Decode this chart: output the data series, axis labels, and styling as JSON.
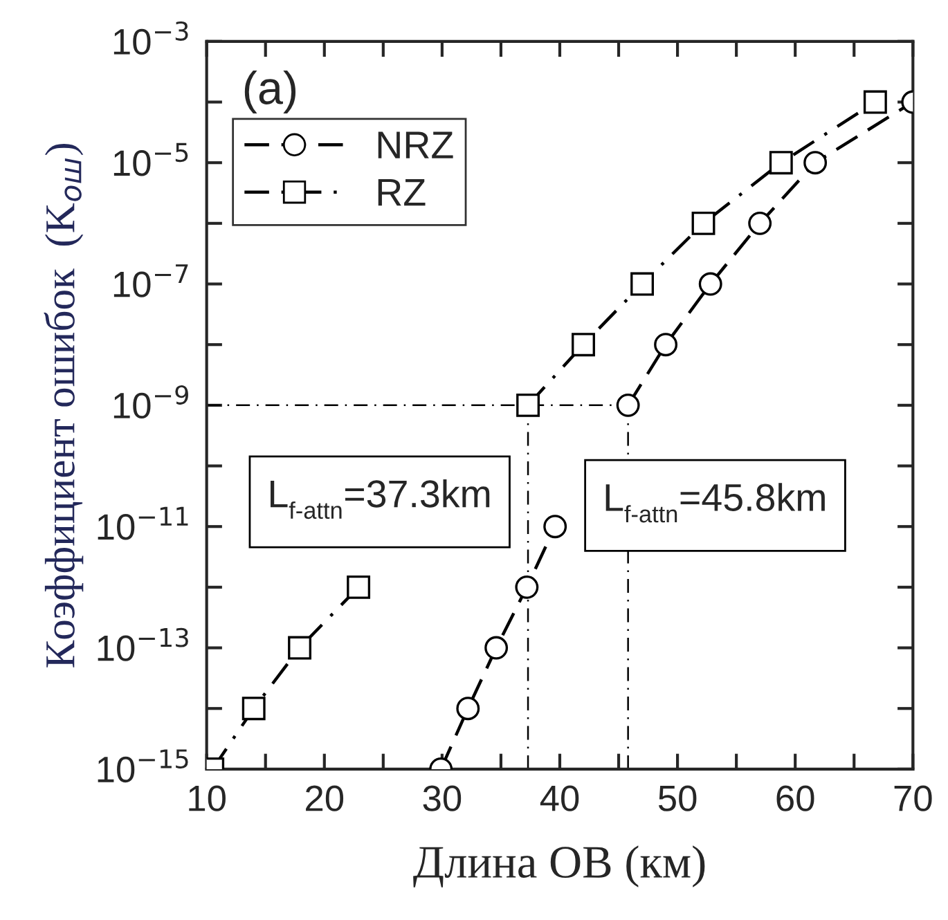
{
  "chart_data": {
    "type": "line",
    "xlabel": "Длина ОВ (км)",
    "ylabel": "Коэффициент ошибок  (K$_{ош}$)",
    "annotations": [
      "(a)"
    ],
    "log": "y",
    "grid": false,
    "legend": "top left",
    "xlim": [
      10,
      70
    ],
    "ylim": [
      1e-15,
      0.001
    ],
    "xticks": [
      10,
      {
        "value": 15,
        "label": null
      },
      20,
      {
        "value": 25,
        "label": null
      },
      30,
      {
        "value": 35,
        "label": null
      },
      40,
      {
        "value": 45,
        "label": null
      },
      50,
      {
        "value": 55,
        "label": null
      },
      60,
      {
        "value": 65,
        "label": null
      },
      70
    ],
    "yticks": [
      {
        "value": 1e-15,
        "label": "10$^{−15}$"
      },
      {
        "value": 1e-14,
        "label": null
      },
      {
        "value": 1e-13,
        "label": "10$^{−13}$"
      },
      {
        "value": 1e-12,
        "label": null
      },
      {
        "value": 1e-11,
        "label": "10$^{−11}$"
      },
      {
        "value": 1e-10,
        "label": null
      },
      {
        "value": 1e-09,
        "label": "10$^{−9}$"
      },
      {
        "value": 1e-08,
        "label": null
      },
      {
        "value": 1e-07,
        "label": "10$^{−7}$"
      },
      {
        "value": 1e-06,
        "label": null
      },
      {
        "value": 1e-05,
        "label": "10$^{−5}$"
      },
      {
        "value": 0.0001,
        "label": null
      },
      {
        "value": 0.001,
        "label": "10$^{−3}$"
      }
    ],
    "ref_lines": [
      {
        "axis": "x",
        "value": 37.3,
        "label": "L$_{f-attn}$=37.3km",
        "line_style": "dashdot",
        "color": "#000000"
      },
      {
        "axis": "x",
        "value": 45.8,
        "label": "L$_{f-attn}$=45.8km",
        "line_style": "dashdot",
        "color": "#000000"
      },
      {
        "axis": "y",
        "value": 1e-09,
        "line_style": "dashdot",
        "color": "#000000"
      }
    ],
    "series": [
      {
        "name": "NRZ",
        "color": "#000000",
        "marker": "circle",
        "line_style": "dashed",
        "x": [
          29.9,
          32.2,
          34.6,
          37.2,
          39.6,
          42.7,
          45.8,
          49,
          52.8,
          57,
          61.7,
          70
        ],
        "values": [
          1e-15,
          1e-14,
          1e-13,
          1e-12,
          1e-11,
          null,
          1e-09,
          1e-08,
          1e-07,
          1e-06,
          1e-05,
          0.0001
        ]
      },
      {
        "name": "RZ",
        "color": "#000000",
        "marker": "square",
        "line_style": "dashdot",
        "x": [
          10.5,
          14,
          17.9,
          22.9,
          27.9,
          32.6,
          37.3,
          42,
          47,
          52.2,
          58.8,
          66.8
        ],
        "values": [
          1e-15,
          1e-14,
          1e-13,
          1e-12,
          null,
          null,
          1e-09,
          1e-08,
          1e-07,
          1e-06,
          1e-05,
          0.0001
        ]
      }
    ]
  }
}
